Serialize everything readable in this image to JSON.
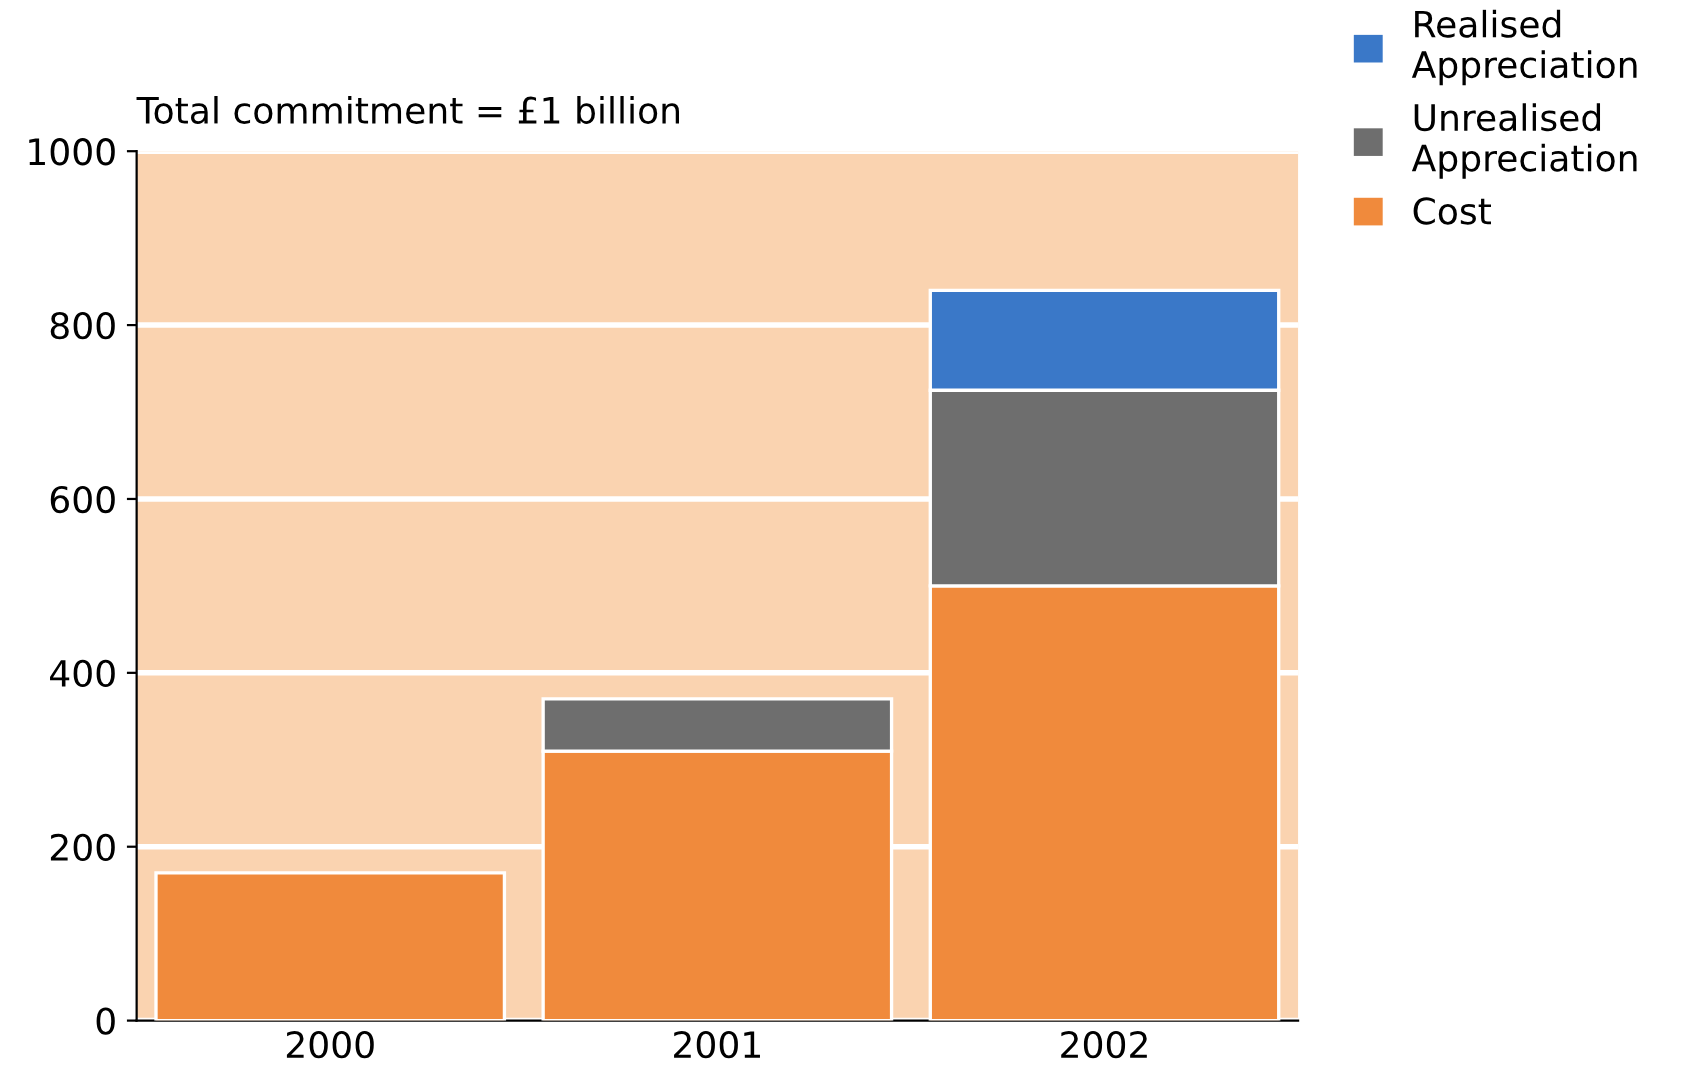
{
  "chart_data": {
    "type": "bar",
    "title": "Total commitment = £1 billion",
    "categories": [
      "2000",
      "2001",
      "2002"
    ],
    "stacked": true,
    "series": [
      {
        "name": "Cost",
        "color": "#f08a3c",
        "values": [
          170,
          310,
          500
        ]
      },
      {
        "name": "Unrealised Appreciation",
        "color": "#6e6e6e",
        "values": [
          null,
          60,
          225
        ]
      },
      {
        "name": "Realised Appreciation",
        "color": "#3a78c8",
        "values": [
          null,
          null,
          115
        ]
      }
    ],
    "ylim": [
      0,
      1000
    ],
    "yticks": [
      0,
      200,
      400,
      600,
      800,
      1000
    ],
    "grid": "y",
    "legend": "top right"
  }
}
